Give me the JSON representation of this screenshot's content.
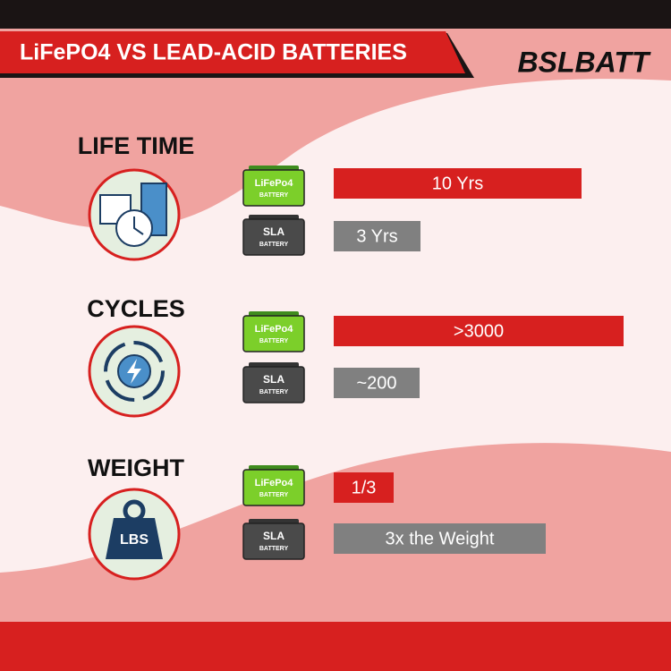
{
  "header": {
    "title": "LiFePO4 VS LEAD-ACID BATTERIES",
    "logo": "BSLBATT"
  },
  "sections": [
    {
      "title": "LIFE TIME",
      "items": [
        {
          "battery": "LiFePo4",
          "battery_sub": "BATTERY",
          "value": "10 Yrs"
        },
        {
          "battery": "SLA",
          "battery_sub": "BATTERY",
          "value": "3 Yrs"
        }
      ]
    },
    {
      "title": "CYCLES",
      "items": [
        {
          "battery": "LiFePo4",
          "battery_sub": "BATTERY",
          "value": ">3000"
        },
        {
          "battery": "SLA",
          "battery_sub": "BATTERY",
          "value": "~200"
        }
      ]
    },
    {
      "title": "WEIGHT",
      "icon_label": "LBS",
      "items": [
        {
          "battery": "LiFePo4",
          "battery_sub": "BATTERY",
          "value": "1/3"
        },
        {
          "battery": "SLA",
          "battery_sub": "BATTERY",
          "value": "3x the Weight"
        }
      ]
    }
  ]
}
